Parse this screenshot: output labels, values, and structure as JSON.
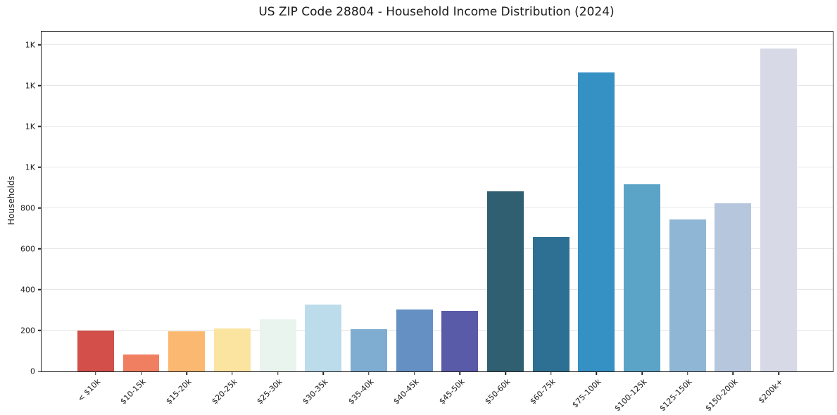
{
  "chart_data": {
    "type": "bar",
    "title": "US ZIP Code 28804 - Household Income Distribution (2024)",
    "ylabel": "Households",
    "xlabel": "",
    "categories": [
      "< $10k",
      "$10-15k",
      "$15-20k",
      "$20-25k",
      "$25-30k",
      "$30-35k",
      "$35-40k",
      "$40-45k",
      "$45-50k",
      "$50-60k",
      "$60-75k",
      "$75-100k",
      "$100-125k",
      "$125-150k",
      "$150-200k",
      "$200k+"
    ],
    "values": [
      200,
      83,
      196,
      210,
      255,
      327,
      207,
      303,
      296,
      882,
      658,
      1465,
      917,
      744,
      824,
      1582
    ],
    "bar_colors": [
      "#d24f4a",
      "#ef7f60",
      "#fab871",
      "#fbe3a0",
      "#e9f4ef",
      "#bcdcec",
      "#7eadd1",
      "#6590c4",
      "#5a5ba8",
      "#2f5f70",
      "#2e7093",
      "#3590c3",
      "#5ba4c8",
      "#90b6d5",
      "#b6c7dd",
      "#d7d9e7"
    ],
    "ylim": [
      0,
      1665
    ],
    "yticks": [
      {
        "value": 0,
        "label": "0"
      },
      {
        "value": 200,
        "label": "200"
      },
      {
        "value": 400,
        "label": "400"
      },
      {
        "value": 600,
        "label": "600"
      },
      {
        "value": 800,
        "label": "800"
      },
      {
        "value": 1000,
        "label": "1K"
      },
      {
        "value": 1200,
        "label": "1K"
      },
      {
        "value": 1400,
        "label": "1K"
      },
      {
        "value": 1600,
        "label": "1K"
      }
    ],
    "grid": "horizontal",
    "gridline_color": "#e7e7e7",
    "axis_color": "#262626",
    "text_color": "#1a1a1a",
    "legend_position": "none",
    "x_label_rotation_deg": 45,
    "x_model": {
      "x_min": -1.19,
      "x_max": 16.19,
      "bar_width_units": 0.8
    }
  }
}
